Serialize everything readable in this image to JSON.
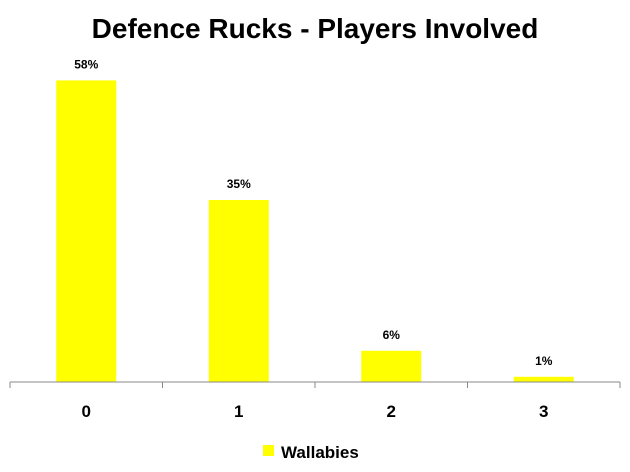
{
  "chart_data": {
    "type": "bar",
    "title": "Defence Rucks - Players Involved",
    "categories": [
      "0",
      "1",
      "2",
      "3"
    ],
    "series": [
      {
        "name": "Wallabies",
        "values": [
          58,
          35,
          6,
          1
        ],
        "color": "#ffff00"
      }
    ],
    "data_labels": [
      "58%",
      "35%",
      "6%",
      "1%"
    ],
    "xlabel": "",
    "ylabel": "",
    "ylim": [
      0,
      60
    ],
    "grid": false,
    "legend_position": "bottom"
  }
}
